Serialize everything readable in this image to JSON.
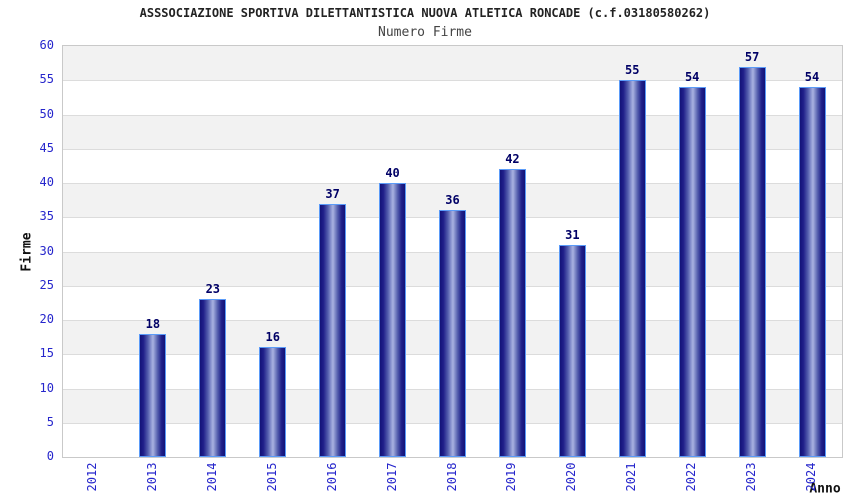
{
  "header": {
    "title": "ASSSOCIAZIONE SPORTIVA DILETTANTISTICA NUOVA ATLETICA RONCADE (c.f.03180580262)",
    "subtitle": "Numero Firme"
  },
  "chart_data": {
    "type": "bar",
    "title": "ASSSOCIAZIONE SPORTIVA DILETTANTISTICA NUOVA ATLETICA RONCADE (c.f.03180580262)",
    "subtitle": "Numero Firme",
    "xlabel": "Anno",
    "ylabel": "Firme",
    "categories": [
      "2012",
      "2013",
      "2014",
      "2015",
      "2016",
      "2017",
      "2018",
      "2019",
      "2020",
      "2021",
      "2022",
      "2023",
      "2024"
    ],
    "values": [
      0,
      18,
      23,
      16,
      37,
      40,
      36,
      42,
      31,
      55,
      54,
      57,
      54
    ],
    "ylim": [
      0,
      60
    ],
    "ytick_step": 5,
    "yticks": [
      0,
      5,
      10,
      15,
      20,
      25,
      30,
      35,
      40,
      45,
      50,
      55,
      60
    ],
    "grid": "horizontal alternating bands, gray band at top (55-60)",
    "legend": "none",
    "colors": {
      "bar_dark": "#131378",
      "bar_light": "#9ba5da",
      "bar_border": "#5b9bf8",
      "value_label": "#000066",
      "tick_label": "#2626cc",
      "band_gray": "#f2f2f2",
      "band_white": "#ffffff",
      "grid_line": "#dcdcdc",
      "plot_border": "#c9c9c9",
      "title_text": "#222222",
      "subtitle_text": "#444444",
      "axis_title_text": "#111111"
    }
  }
}
